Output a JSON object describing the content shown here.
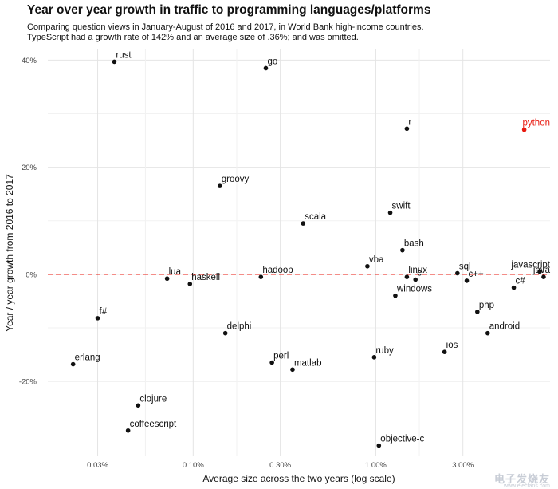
{
  "chart_data": {
    "type": "scatter",
    "title": "Year over year growth in traffic to programming languages/platforms",
    "subtitle_lines": [
      "Comparing question views in January-August of 2016 and 2017, in World Bank high-income countries.",
      "TypeScript had a growth rate of 142% and an average size of .36%; and was omitted."
    ],
    "xlabel": "Average size across the two years (log scale)",
    "ylabel": "Year / year growth from 2016 to 2017",
    "x_scale": "log",
    "xlim": [
      0.016,
      9.0
    ],
    "ylim": [
      -0.34,
      0.42
    ],
    "x_ticks": [
      {
        "value": 0.03,
        "label": "0.03%"
      },
      {
        "value": 0.1,
        "label": "0.10%"
      },
      {
        "value": 0.3,
        "label": "0.30%"
      },
      {
        "value": 1.0,
        "label": "1.00%"
      },
      {
        "value": 3.0,
        "label": "3.00%"
      }
    ],
    "y_ticks": [
      {
        "value": -0.2,
        "label": "-20%"
      },
      {
        "value": 0.0,
        "label": "0%"
      },
      {
        "value": 0.2,
        "label": "20%"
      },
      {
        "value": 0.4,
        "label": "40%"
      }
    ],
    "reference_line": {
      "y": 0.0,
      "color": "#e8190f",
      "style": "dashed"
    },
    "grid": true,
    "point_color": "#111111",
    "highlight_color": "#e8190f",
    "points": [
      {
        "name": "rust",
        "x": 0.037,
        "y": 0.397
      },
      {
        "name": "go",
        "x": 0.25,
        "y": 0.385
      },
      {
        "name": "r",
        "x": 1.48,
        "y": 0.272
      },
      {
        "name": "python",
        "x": 6.5,
        "y": 0.27,
        "highlight": true
      },
      {
        "name": "groovy",
        "x": 0.14,
        "y": 0.165
      },
      {
        "name": "swift",
        "x": 1.2,
        "y": 0.115
      },
      {
        "name": "scala",
        "x": 0.4,
        "y": 0.095
      },
      {
        "name": "bash",
        "x": 1.4,
        "y": 0.045
      },
      {
        "name": "vba",
        "x": 0.9,
        "y": 0.015
      },
      {
        "name": "sql",
        "x": 2.8,
        "y": 0.002
      },
      {
        "name": "javascript",
        "x": 7.9,
        "y": 0.005
      },
      {
        "name": "lua",
        "x": 0.072,
        "y": -0.008
      },
      {
        "name": "hadoop",
        "x": 0.235,
        "y": -0.005
      },
      {
        "name": "linux",
        "x": 1.48,
        "y": -0.005
      },
      {
        "name": "c",
        "x": 1.65,
        "y": -0.01
      },
      {
        "name": "haskell",
        "x": 0.096,
        "y": -0.018
      },
      {
        "name": "windows",
        "x": 1.28,
        "y": -0.04
      },
      {
        "name": "c++",
        "x": 3.15,
        "y": -0.012
      },
      {
        "name": "c#",
        "x": 5.7,
        "y": -0.025
      },
      {
        "name": "java",
        "x": 8.3,
        "y": -0.005
      },
      {
        "name": "f#",
        "x": 0.03,
        "y": -0.082
      },
      {
        "name": "php",
        "x": 3.6,
        "y": -0.07
      },
      {
        "name": "delphi",
        "x": 0.15,
        "y": -0.11
      },
      {
        "name": "android",
        "x": 4.1,
        "y": -0.11
      },
      {
        "name": "ios",
        "x": 2.38,
        "y": -0.145
      },
      {
        "name": "ruby",
        "x": 0.98,
        "y": -0.155
      },
      {
        "name": "perl",
        "x": 0.27,
        "y": -0.165
      },
      {
        "name": "erlang",
        "x": 0.022,
        "y": -0.168
      },
      {
        "name": "matlab",
        "x": 0.35,
        "y": -0.178
      },
      {
        "name": "clojure",
        "x": 0.05,
        "y": -0.245
      },
      {
        "name": "coffeescript",
        "x": 0.044,
        "y": -0.292
      },
      {
        "name": "objective-c",
        "x": 1.04,
        "y": -0.32
      }
    ]
  },
  "watermark": {
    "brand": "电子发烧友",
    "url": "www.elecfans.com"
  }
}
